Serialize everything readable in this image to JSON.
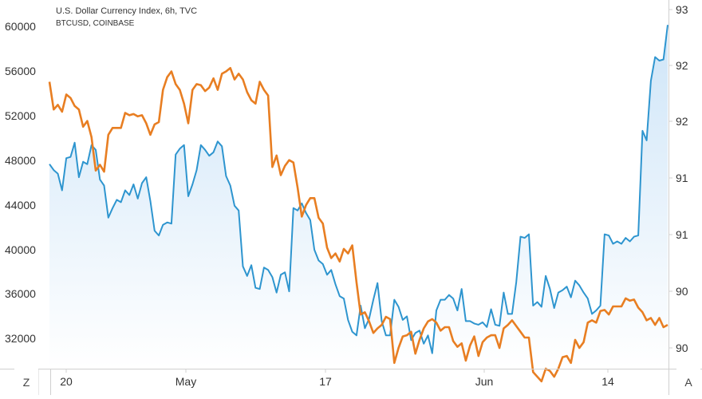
{
  "legend": {
    "title": "U.S. Dollar Currency Index, 6h, TVC",
    "subtitle": "BTCUSD, COINBASE"
  },
  "buttons": {
    "left": "Z",
    "right": "A"
  },
  "colors": {
    "btc_line": "#2e95cf",
    "btc_fill_top": "#c9e2f7",
    "btc_fill_bottom": "#ffffff",
    "dxy_line": "#e87e22",
    "axis_text": "#333333",
    "border": "#d0d0d0"
  },
  "chart_data": {
    "type": "line",
    "title": "U.S. Dollar Currency Index, 6h, TVC",
    "x_ticks": [
      "20",
      "May",
      "17",
      "Jun",
      "14"
    ],
    "left_axis": {
      "ticks": [
        "60000",
        "56000",
        "52000",
        "48000",
        "44000",
        "40000",
        "36000",
        "32000"
      ],
      "ylim": [
        30800,
        61800
      ]
    },
    "right_axis": {
      "ticks": [
        "93",
        "92",
        "92",
        "91",
        "91",
        "90",
        "90"
      ],
      "ylim": [
        89.95,
        93.15
      ]
    },
    "series": [
      {
        "name": "BTCUSD, COINBASE",
        "axis": "left",
        "style": "area",
        "values": [
          48000,
          47500,
          47200,
          45800,
          48500,
          48600,
          49800,
          46900,
          48200,
          48000,
          49600,
          49200,
          46700,
          46200,
          43500,
          44300,
          45000,
          44800,
          45800,
          45400,
          46300,
          45100,
          46400,
          46900,
          44900,
          42400,
          42000,
          42900,
          43100,
          43000,
          48800,
          49300,
          49600,
          45300,
          46300,
          47500,
          49600,
          49200,
          48700,
          49000,
          49900,
          49500,
          47000,
          46200,
          44500,
          44100,
          39400,
          38600,
          39500,
          37600,
          37500,
          39300,
          39100,
          38500,
          37200,
          38700,
          38900,
          37300,
          44300,
          44100,
          44700,
          43900,
          43300,
          40800,
          39900,
          39600,
          38700,
          39100,
          37900,
          36900,
          36700,
          34900,
          33900,
          33600,
          36100,
          34200,
          35000,
          36600,
          38000,
          34800,
          33600,
          33600,
          36600,
          36000,
          34900,
          35200,
          33200,
          33800,
          34000,
          32900,
          33600,
          32100,
          35700,
          36600,
          36600,
          37000,
          36700,
          35700,
          37500,
          34800,
          34800,
          34600,
          34500,
          34700,
          34300,
          35800,
          34500,
          34400,
          37200,
          35400,
          35400,
          38100,
          41900,
          41800,
          42100,
          36100,
          36400,
          36000,
          38600,
          37500,
          35900,
          37200,
          37400,
          37700,
          36800,
          38200,
          37800,
          37200,
          36700,
          35400,
          35700,
          36100,
          42100,
          42000,
          41300,
          41500,
          41300,
          41800,
          41500,
          41900,
          42000,
          50800,
          50000,
          55000,
          57000,
          56700,
          56800,
          59700
        ]
      },
      {
        "name": "U.S. Dollar Currency Index",
        "axis": "right",
        "style": "line",
        "values": [
          92.44,
          92.2,
          92.24,
          92.18,
          92.33,
          92.3,
          92.23,
          92.2,
          92.05,
          92.1,
          91.96,
          91.67,
          91.72,
          91.66,
          91.98,
          92.04,
          92.04,
          92.04,
          92.17,
          92.15,
          92.16,
          92.14,
          92.15,
          92.08,
          91.98,
          92.07,
          92.09,
          92.37,
          92.48,
          92.53,
          92.42,
          92.37,
          92.25,
          92.08,
          92.37,
          92.42,
          92.41,
          92.36,
          92.39,
          92.47,
          92.37,
          92.51,
          92.53,
          92.56,
          92.46,
          92.51,
          92.46,
          92.35,
          92.28,
          92.25,
          92.44,
          92.37,
          92.32,
          91.7,
          91.8,
          91.63,
          91.71,
          91.76,
          91.74,
          91.52,
          91.27,
          91.37,
          91.43,
          91.43,
          91.26,
          91.21,
          91.0,
          90.91,
          90.95,
          90.88,
          90.99,
          90.95,
          91.02,
          90.7,
          90.42,
          90.44,
          90.36,
          90.26,
          90.3,
          90.33,
          90.4,
          90.38,
          90.0,
          90.13,
          90.23,
          90.24,
          90.27,
          90.08,
          90.2,
          90.3,
          90.36,
          90.38,
          90.35,
          90.28,
          90.31,
          90.31,
          90.19,
          90.14,
          90.17,
          90.02,
          90.15,
          90.23,
          90.06,
          90.18,
          90.22,
          90.24,
          90.24,
          90.13,
          90.3,
          90.33,
          90.37,
          90.32,
          90.27,
          90.22,
          90.22,
          89.92,
          89.88,
          89.84,
          89.95,
          89.93,
          89.88,
          89.95,
          90.05,
          90.06,
          90.0,
          90.2,
          90.13,
          90.18,
          90.35,
          90.37,
          90.35,
          90.45,
          90.46,
          90.42,
          90.49,
          90.49,
          90.49,
          90.56,
          90.54,
          90.55,
          90.48,
          90.44,
          90.37,
          90.39,
          90.33,
          90.39,
          90.31,
          90.33
        ]
      }
    ],
    "grid": false,
    "legend_position": "top-left"
  }
}
